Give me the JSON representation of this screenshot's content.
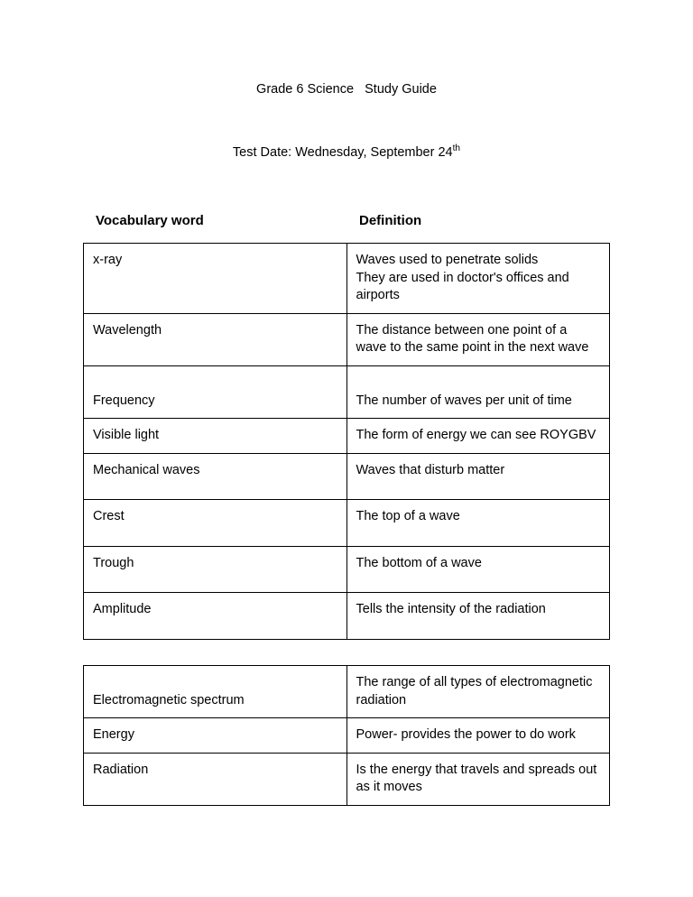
{
  "title": "Grade 6 Science   Study Guide",
  "subtitle_prefix": "Test Date: Wednesday, September 24",
  "subtitle_suffix": "th",
  "headers": {
    "left": "Vocabulary word",
    "right": "Definition"
  },
  "table1": [
    {
      "term": "x-ray",
      "def": "Waves used to penetrate solids\nThey are used in doctor's offices and airports"
    },
    {
      "term": "Wavelength",
      "def": "The distance between one point of a wave to the same point in the next wave"
    },
    {
      "term": "Frequency",
      "def": "\nThe number of waves per unit of time",
      "termAlignBottom": true
    },
    {
      "term": "Visible light",
      "def": "The form of energy we can see ROYGBV"
    },
    {
      "term": "Mechanical waves",
      "def": "Waves that disturb matter",
      "extraPad": true
    },
    {
      "term": "Crest",
      "def": " The top of a wave",
      "termAlignBottom": true,
      "extraPad": true
    },
    {
      "term": "Trough",
      "def": "The bottom of a wave",
      "termAlignBottom": true,
      "extraPad": true
    },
    {
      "term": "Amplitude",
      "def": "Tells the intensity of the radiation",
      "extraPad": true
    }
  ],
  "table2": [
    {
      "term": "Electromagnetic spectrum",
      "def": "The range of all types of electromagnetic radiation",
      "termAlignBottom": true
    },
    {
      "term": "Energy",
      "def": "Power- provides the power to do work"
    },
    {
      "term": "Radiation",
      "def": "Is the energy that travels and spreads out as it moves"
    }
  ]
}
